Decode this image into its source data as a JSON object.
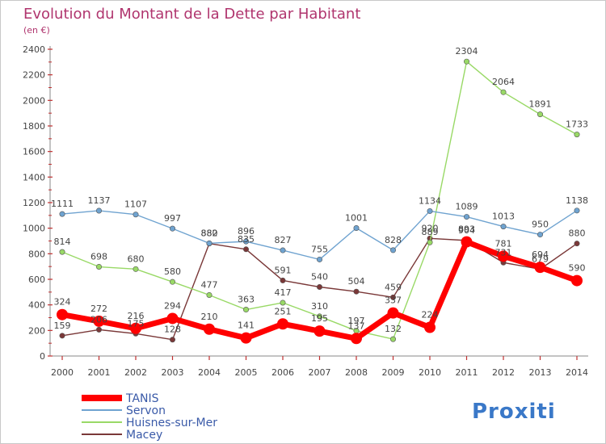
{
  "chart_data": {
    "type": "line",
    "title": "Evolution du Montant de la Dette par Habitant",
    "subtitle": "(en €)",
    "x": [
      "2000",
      "2001",
      "2002",
      "2003",
      "2004",
      "2005",
      "2006",
      "2007",
      "2008",
      "2009",
      "2010",
      "2011",
      "2012",
      "2013",
      "2014"
    ],
    "ylim": [
      0,
      2400
    ],
    "yticks": [
      0,
      200,
      400,
      600,
      800,
      1000,
      1200,
      1400,
      1600,
      1800,
      2000,
      2200,
      2400
    ],
    "grid": false,
    "legend": "bottom-left",
    "series": [
      {
        "name": "TANIS",
        "color": "#ff0000",
        "values": [
          324,
          272,
          216,
          294,
          210,
          141,
          251,
          195,
          137,
          337,
          224,
          893,
          781,
          694,
          590
        ]
      },
      {
        "name": "Servon",
        "color": "#6fa3d0",
        "values": [
          1111,
          1137,
          1107,
          997,
          882,
          896,
          827,
          755,
          1001,
          828,
          1134,
          1089,
          1013,
          950,
          1138
        ]
      },
      {
        "name": "Huisnes-sur-Mer",
        "color": "#99d966",
        "values": [
          814,
          698,
          680,
          580,
          477,
          363,
          417,
          310,
          197,
          132,
          889,
          2304,
          2064,
          1891,
          1733
        ]
      },
      {
        "name": "Macey",
        "color": "#7a3838",
        "values": [
          159,
          206,
          175,
          128,
          880,
          835,
          591,
          540,
          504,
          459,
          920,
          904,
          731,
          679,
          880
        ]
      }
    ]
  },
  "logo": {
    "text": "Proxiti"
  }
}
